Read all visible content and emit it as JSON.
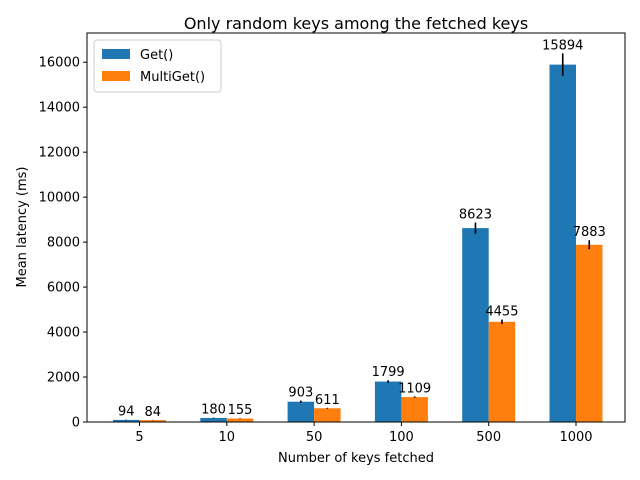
{
  "chart_data": {
    "type": "bar",
    "title": "Only random keys among the fetched keys",
    "xlabel": "Number of keys fetched",
    "ylabel": "Mean latency (ms)",
    "categories": [
      "5",
      "10",
      "50",
      "100",
      "500",
      "1000"
    ],
    "ylim": [
      0,
      17300
    ],
    "yticks": [
      0,
      2000,
      4000,
      6000,
      8000,
      10000,
      12000,
      14000,
      16000
    ],
    "legend_position": "top-left",
    "grid": false,
    "series": [
      {
        "name": "Get()",
        "color": "#1f77b4",
        "values": [
          94,
          180,
          903,
          1799,
          8623,
          15894
        ],
        "errors": [
          10,
          15,
          50,
          60,
          250,
          500
        ]
      },
      {
        "name": "MultiGet()",
        "color": "#ff7f0e",
        "values": [
          84,
          155,
          611,
          1109,
          4455,
          7883
        ],
        "errors": [
          8,
          12,
          20,
          30,
          100,
          200
        ]
      }
    ]
  }
}
